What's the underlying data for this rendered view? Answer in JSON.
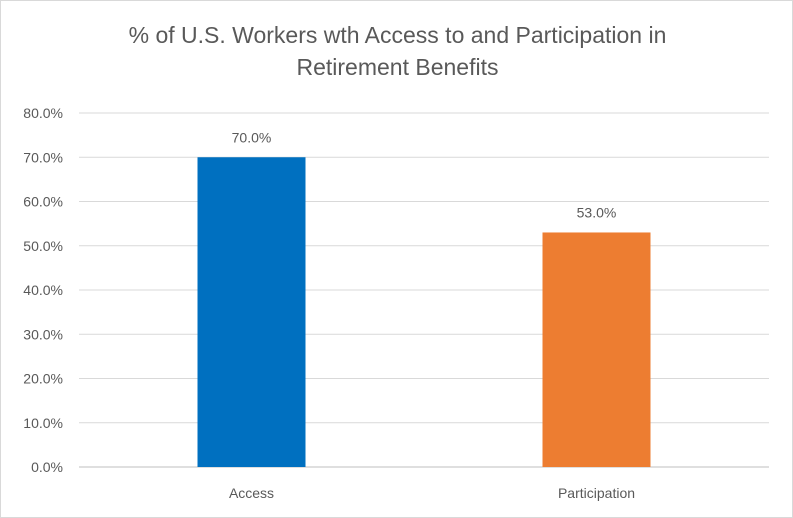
{
  "chart_data": {
    "type": "bar",
    "title_line1": "% of U.S. Workers wth Access to and Participation in",
    "title_line2": "Retirement Benefits",
    "categories": [
      "Access",
      "Participation"
    ],
    "values": [
      70.0,
      53.0
    ],
    "value_labels": [
      "70.0%",
      "53.0%"
    ],
    "bar_colors": [
      "#0070c0",
      "#ed7d31"
    ],
    "ylim": [
      0,
      80
    ],
    "yticks": [
      0,
      10,
      20,
      30,
      40,
      50,
      60,
      70,
      80
    ],
    "ytick_labels": [
      "0.0%",
      "10.0%",
      "20.0%",
      "30.0%",
      "40.0%",
      "50.0%",
      "60.0%",
      "70.0%",
      "80.0%"
    ],
    "grid": true,
    "legend": "none",
    "xlabel": "",
    "ylabel": ""
  }
}
